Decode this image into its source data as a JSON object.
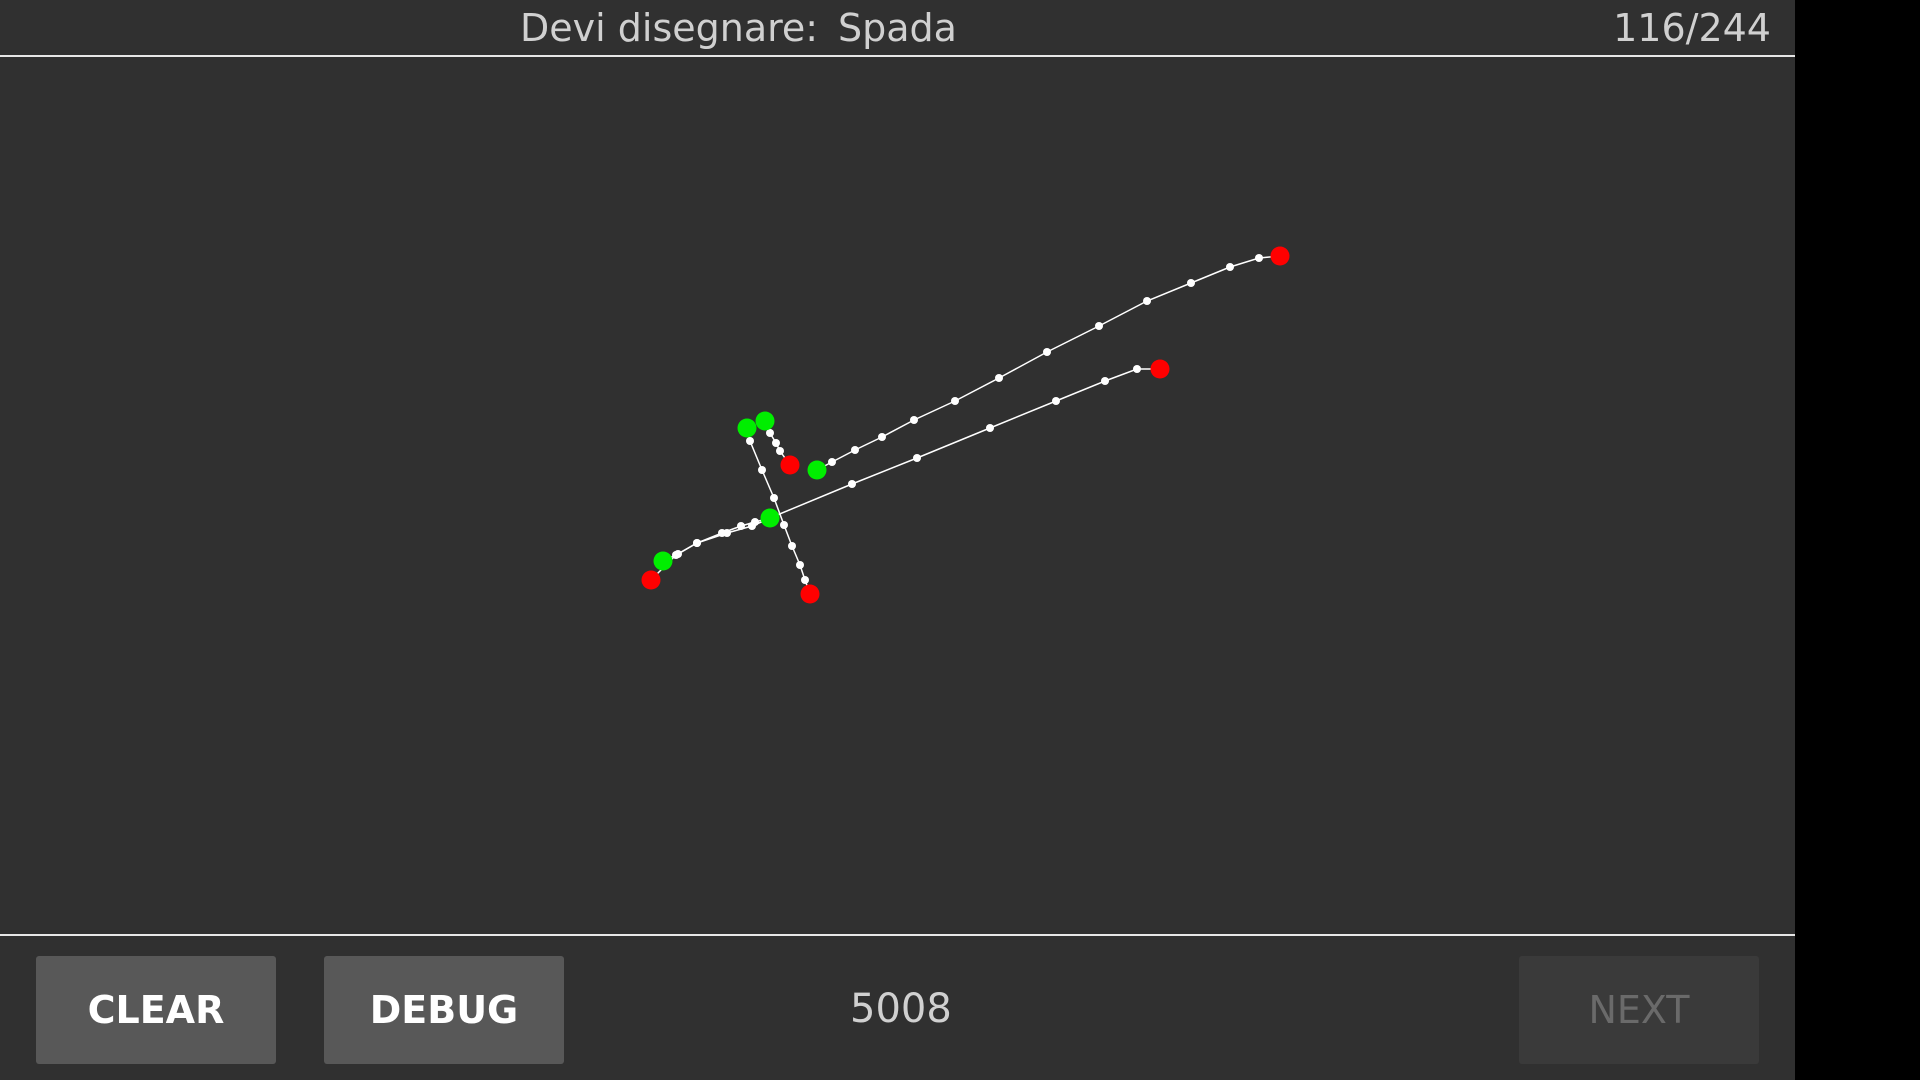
{
  "header": {
    "prompt_label": "Devi disegnare:",
    "prompt_word": "Spada",
    "progress": "116/244"
  },
  "footer": {
    "clear_label": "CLEAR",
    "debug_label": "DEBUG",
    "score": "5008",
    "next_label": "NEXT",
    "next_enabled": false
  },
  "colors": {
    "background": "#303030",
    "stroke": "#ffffff",
    "start_point": "#00ee00",
    "end_point": "#ff0000",
    "text": "#d0d0d0"
  }
}
